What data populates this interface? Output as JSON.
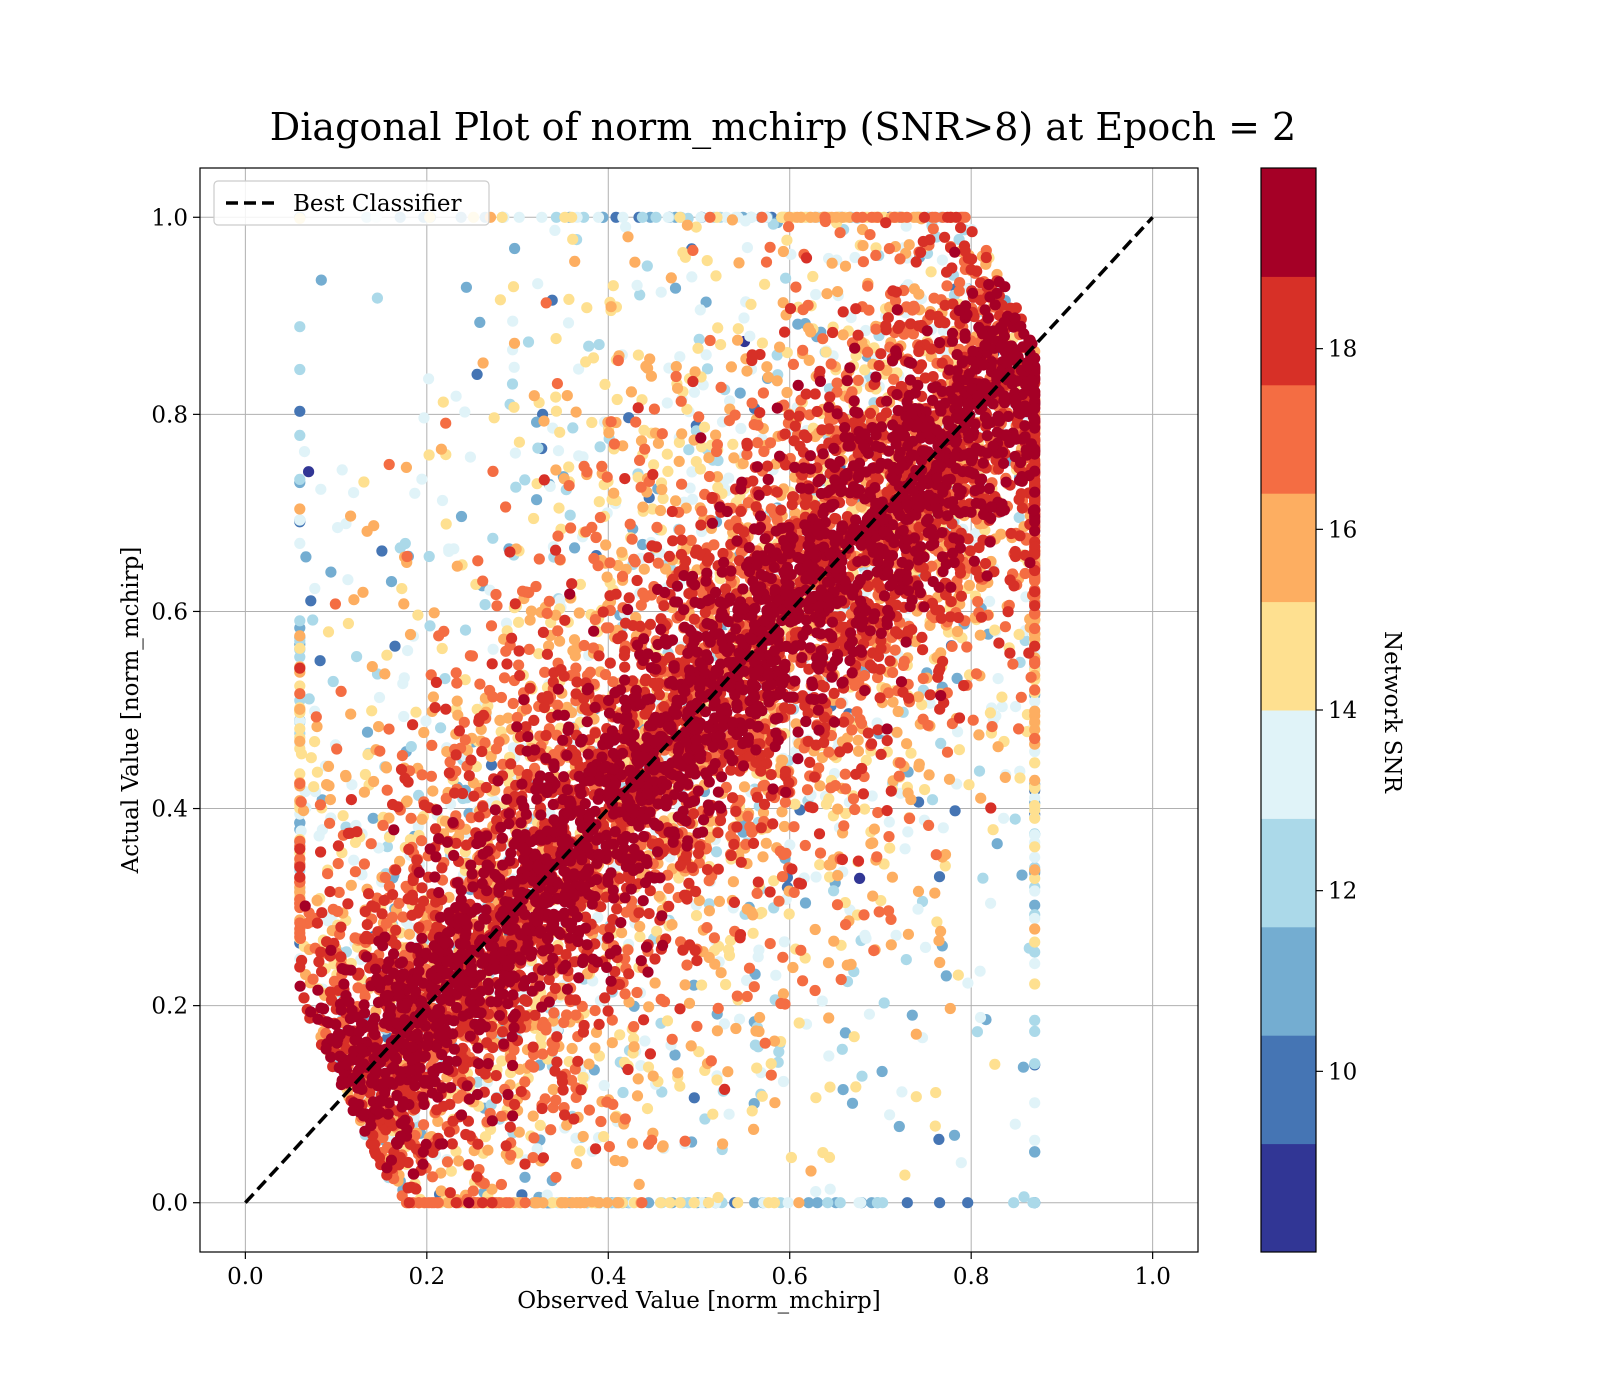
{
  "chart_data": {
    "type": "scatter",
    "title": "Diagonal Plot of norm_mchirp (SNR>8) at Epoch = 2",
    "xlabel": "Observed Value [norm_mchirp]",
    "ylabel": "Actual Value [norm_mchirp]",
    "xlim": [
      -0.05,
      1.05
    ],
    "ylim": [
      -0.05,
      1.05
    ],
    "x_ticks": [
      "0.0",
      "0.2",
      "0.4",
      "0.6",
      "0.8",
      "1.0"
    ],
    "y_ticks": [
      "0.0",
      "0.2",
      "0.4",
      "0.6",
      "0.8",
      "1.0"
    ],
    "grid": true,
    "legend": {
      "placement": "upper-left",
      "entries": [
        "Best Classifier"
      ]
    },
    "reference_line": {
      "name": "Best Classifier",
      "style": "dashed",
      "color": "#000000",
      "x": [
        0.0,
        1.0
      ],
      "y": [
        0.0,
        1.0
      ]
    },
    "colorbar": {
      "label": "Network SNR",
      "range": [
        8,
        20
      ],
      "ticks": [
        "10",
        "12",
        "14",
        "16",
        "18"
      ],
      "bin_colors": [
        "#313695",
        "#4575b4",
        "#74add1",
        "#abd9e9",
        "#e0f3f8",
        "#fee090",
        "#fdae61",
        "#f46d43",
        "#d73027",
        "#a50026"
      ]
    },
    "scatter_summary": {
      "n_points": 9000,
      "x_range": [
        0.06,
        0.87
      ],
      "y_range": [
        0.0,
        1.0
      ],
      "trend": "points scatter around the diagonal; high-SNR (dark red) points form a dense band along the line, lower-SNR points spread farther from it"
    }
  }
}
